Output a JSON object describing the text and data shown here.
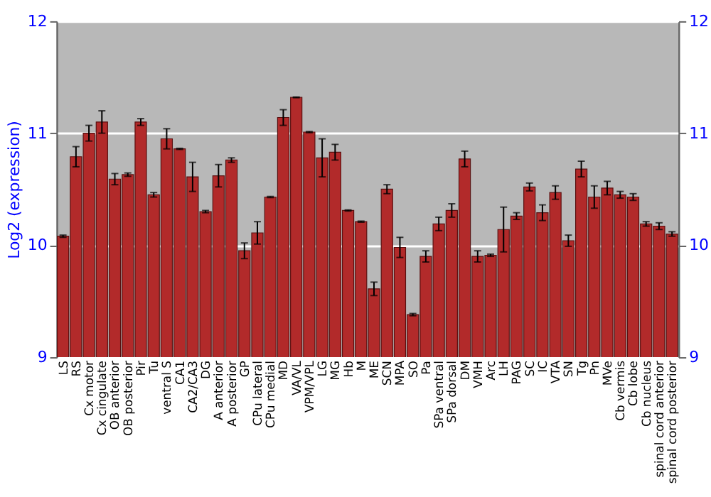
{
  "chart_data": {
    "type": "bar",
    "ylabel": "Log2 (expression)",
    "categories": [
      "LS",
      "RS",
      "Cx motor",
      "Cx cingulate",
      "OB anterior",
      "OB posterior",
      "Pir",
      "Tu",
      "ventral S",
      "CA1",
      "CA2/CA3",
      "DG",
      "A anterior",
      "A posterior",
      "GP",
      "CPu lateral",
      "CPu medial",
      "MD",
      "VA/VL",
      "VPM/VPL",
      "LG",
      "MG",
      "Hb",
      "M",
      "ME",
      "SCN",
      "MPA",
      "SO",
      "Pa",
      "SPa ventral",
      "SPa dorsal",
      "DM",
      "VMH",
      "Arc",
      "LH",
      "PAG",
      "SC",
      "IC",
      "VTA",
      "SN",
      "Tg",
      "Pn",
      "MVe",
      "Cb vermis",
      "Cb lobe",
      "Cb nucleus",
      "spinal cord anterior",
      "spinal cord posterior"
    ],
    "values": [
      10.08,
      10.79,
      11.0,
      11.1,
      10.59,
      10.63,
      11.1,
      10.45,
      10.95,
      10.86,
      10.61,
      10.3,
      10.62,
      10.76,
      9.95,
      10.11,
      10.43,
      11.14,
      11.32,
      11.01,
      10.78,
      10.83,
      10.31,
      10.21,
      9.61,
      10.5,
      9.98,
      9.38,
      9.9,
      10.19,
      10.31,
      10.77,
      9.9,
      9.91,
      10.14,
      10.26,
      10.52,
      10.29,
      10.47,
      10.04,
      10.68,
      10.43,
      10.51,
      10.45,
      10.43,
      10.19,
      10.17,
      10.1
    ],
    "errors": [
      0.01,
      0.09,
      0.07,
      0.1,
      0.05,
      0.015,
      0.03,
      0.02,
      0.09,
      0.005,
      0.13,
      0.01,
      0.1,
      0.02,
      0.07,
      0.1,
      0.005,
      0.07,
      0.003,
      0.005,
      0.17,
      0.07,
      0.005,
      0.005,
      0.06,
      0.04,
      0.09,
      0.01,
      0.05,
      0.06,
      0.06,
      0.07,
      0.05,
      0.01,
      0.2,
      0.03,
      0.035,
      0.07,
      0.06,
      0.05,
      0.07,
      0.1,
      0.06,
      0.03,
      0.03,
      0.02,
      0.03,
      0.02
    ],
    "color": "#b22a2a",
    "ylim": [
      9,
      12
    ],
    "yticks": [
      9,
      10,
      11,
      12
    ],
    "y2lim": [
      9,
      12
    ],
    "y2ticks": [
      9,
      10,
      11,
      12
    ],
    "grid": "y"
  }
}
